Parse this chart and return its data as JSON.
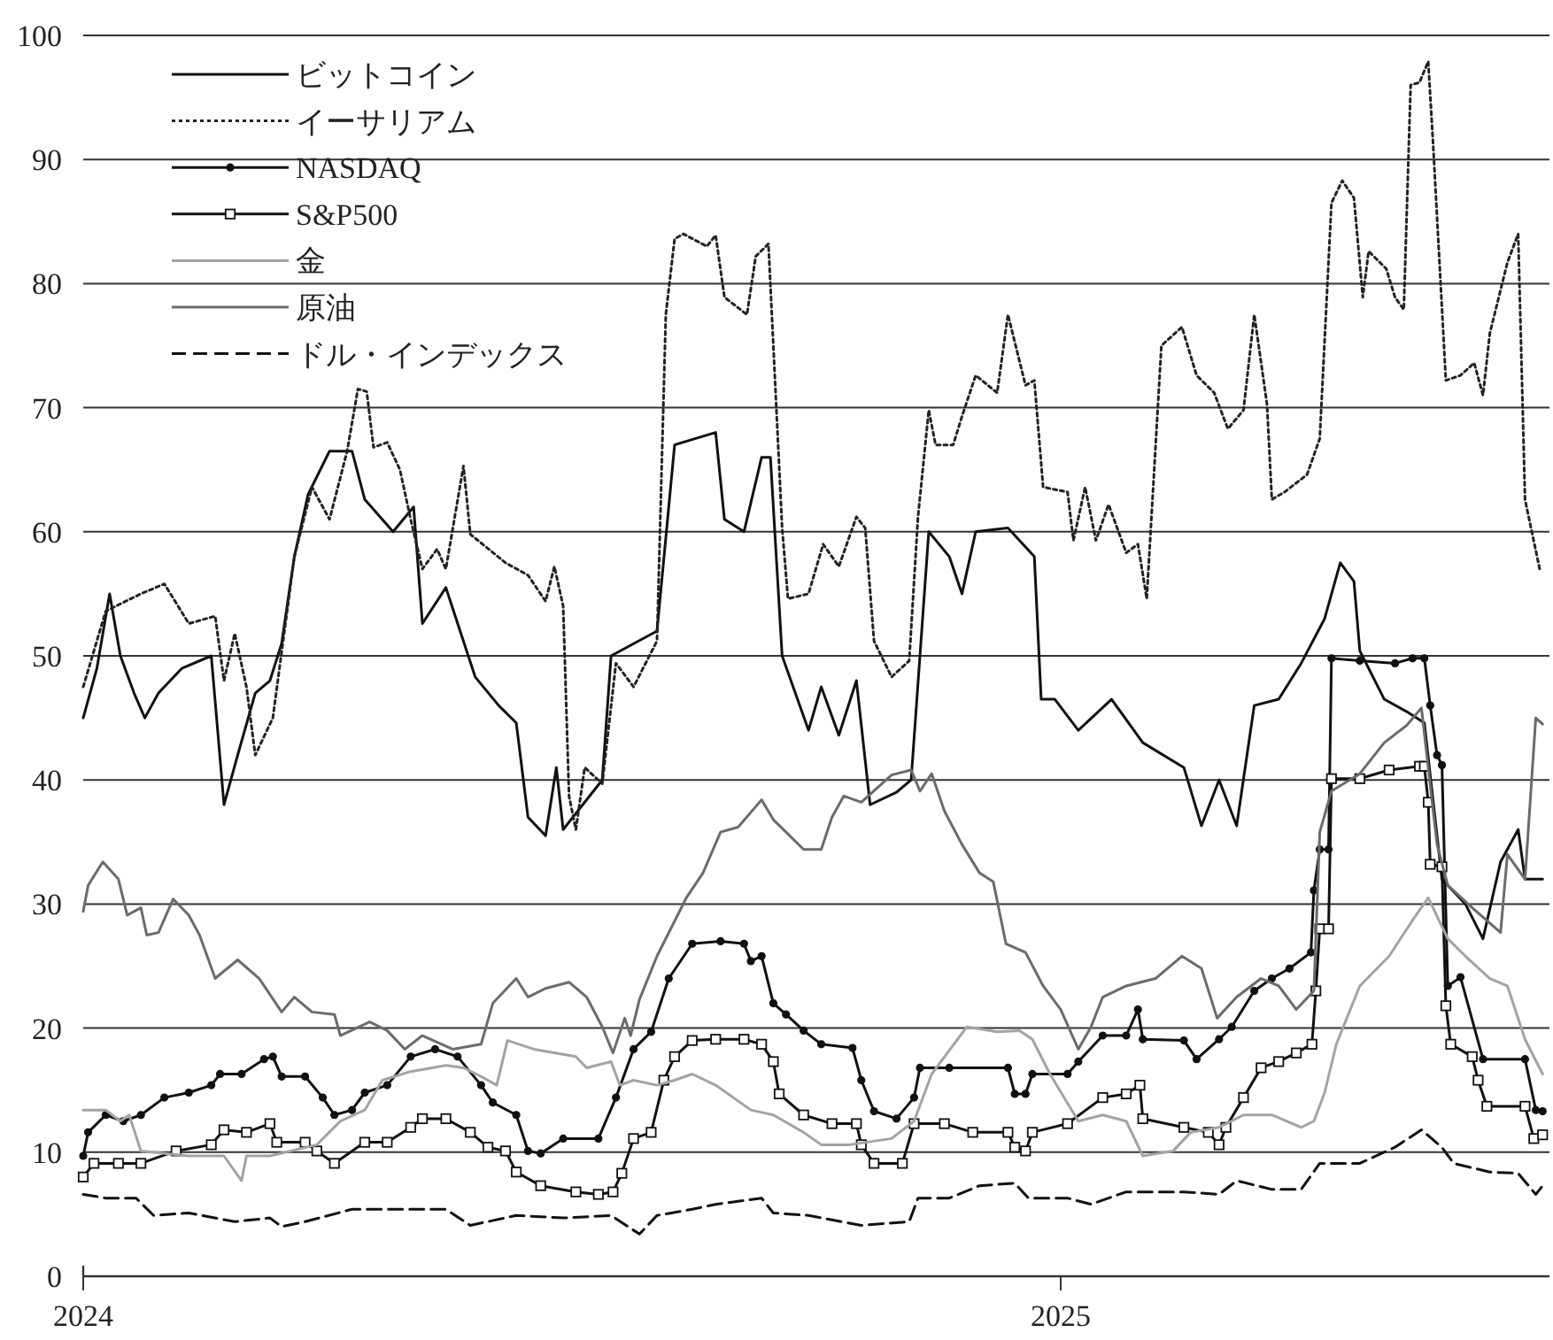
{
  "chart_data": {
    "type": "line",
    "xlim": [
      2024,
      2025.5
    ],
    "xticks": [
      2024,
      2025
    ],
    "ylim": [
      0,
      100
    ],
    "yticks": [
      0,
      10,
      20,
      30,
      40,
      50,
      60,
      70,
      80,
      90,
      100
    ],
    "grid": "y",
    "legend": "top left",
    "series": [
      {
        "name": "ビットコイン",
        "color": "#111111",
        "line_style": "solid",
        "x": [
          2024.0,
          2024.014,
          2024.027,
          2024.038,
          2024.052,
          2024.063,
          2024.077,
          2024.101,
          2024.131,
          2024.144,
          2024.158,
          2024.176,
          2024.191,
          2024.203,
          2024.216,
          2024.23,
          2024.252,
          2024.275,
          2024.288,
          2024.317,
          2024.338,
          2024.347,
          2024.371,
          2024.401,
          2024.425,
          2024.443,
          2024.455,
          2024.473,
          2024.484,
          2024.491,
          2024.531,
          2024.54,
          2024.587,
          2024.599,
          2024.605,
          2024.647,
          2024.656,
          2024.676,
          2024.694,
          2024.703,
          2024.715,
          2024.742,
          2024.755,
          2024.773,
          2024.791,
          2024.805,
          2024.832,
          2024.847,
          2024.865,
          2024.886,
          2024.899,
          2024.913,
          2024.946,
          2024.973,
          2024.98,
          2024.994,
          2025.018,
          2025.052,
          2025.084,
          2025.126,
          2025.144,
          2025.162,
          2025.18,
          2025.198,
          2025.223,
          2025.246,
          2025.27,
          2025.286,
          2025.3,
          2025.306,
          2025.331,
          2025.354,
          2025.372,
          2025.39,
          2025.414,
          2025.432,
          2025.45,
          2025.468,
          2025.475,
          2025.493
        ],
        "values": [
          45,
          49,
          55,
          50,
          47,
          45,
          47,
          49,
          50,
          38,
          42,
          47,
          48,
          51,
          58,
          63,
          66.5,
          66.5,
          62.6,
          60,
          62,
          52.6,
          55.5,
          48.3,
          46,
          44.6,
          37,
          35.5,
          41,
          36,
          40,
          50,
          52,
          62,
          67,
          68,
          61,
          60,
          66,
          66,
          50,
          44,
          47.5,
          43.6,
          48,
          38,
          39,
          40,
          60,
          58,
          55,
          60,
          60.3,
          58,
          46.5,
          46.5,
          44,
          46.5,
          43,
          41,
          36.3,
          40,
          36.3,
          46,
          46.5,
          49.4,
          53,
          57.5,
          56,
          50.4,
          46.5,
          45.5,
          44.6,
          32,
          30,
          27.2,
          33.4,
          36,
          32,
          32
        ]
      },
      {
        "name": "イーサリアム",
        "color": "#222222",
        "line_style": "dotted",
        "x": [
          2024.0,
          2024.023,
          2024.059,
          2024.083,
          2024.108,
          2024.135,
          2024.144,
          2024.155,
          2024.167,
          2024.176,
          2024.194,
          2024.216,
          2024.234,
          2024.252,
          2024.27,
          2024.281,
          2024.29,
          2024.297,
          2024.311,
          2024.324,
          2024.335,
          2024.347,
          2024.362,
          2024.371,
          2024.389,
          2024.396,
          2024.432,
          2024.455,
          2024.473,
          2024.482,
          2024.491,
          2024.497,
          2024.504,
          2024.513,
          2024.531,
          2024.545,
          2024.563,
          2024.587,
          2024.596,
          2024.605,
          2024.614,
          2024.638,
          2024.647,
          2024.656,
          2024.679,
          2024.688,
          2024.701,
          2024.715,
          2024.721,
          2024.742,
          2024.757,
          2024.773,
          2024.791,
          2024.8,
          2024.809,
          2024.827,
          2024.845,
          2024.854,
          2024.865,
          2024.872,
          2024.89,
          2024.899,
          2024.913,
          2024.935,
          2024.946,
          2024.964,
          2024.973,
          2024.982,
          2025.007,
          2025.013,
          2025.025,
          2025.036,
          2025.049,
          2025.067,
          2025.079,
          2025.088,
          2025.103,
          2025.124,
          2025.139,
          2025.157,
          2025.171,
          2025.187,
          2025.198,
          2025.211,
          2025.216,
          2025.229,
          2025.252,
          2025.265,
          2025.277,
          2025.288,
          2025.3,
          2025.309,
          2025.315,
          2025.333,
          2025.342,
          2025.351,
          2025.358,
          2025.367,
          2025.376,
          2025.381,
          2025.394,
          2025.409,
          2025.423,
          2025.432,
          2025.439,
          2025.457,
          2025.468,
          2025.475,
          2025.49
        ],
        "values": [
          47.5,
          53.6,
          55,
          55.8,
          52.6,
          53.2,
          48,
          51.8,
          47.5,
          42,
          45,
          58,
          63.6,
          61,
          66.5,
          71.5,
          71.3,
          66.8,
          67.2,
          65,
          61,
          57,
          58.6,
          57,
          65.3,
          59.8,
          57.5,
          56.5,
          54.4,
          57.2,
          54,
          38.7,
          36,
          41,
          39.7,
          49.4,
          47.5,
          51.2,
          77.5,
          83.6,
          84,
          83,
          83.9,
          78.9,
          77.5,
          82.2,
          83.2,
          60.3,
          54.6,
          55,
          59,
          57.2,
          61.2,
          60.3,
          51.2,
          48.3,
          49.6,
          61.2,
          69.8,
          67,
          67,
          69.3,
          72.6,
          71.2,
          77.5,
          71.8,
          72.2,
          63.6,
          63.2,
          59.3,
          63.6,
          59.3,
          62.2,
          58.3,
          59,
          54.6,
          75,
          76.5,
          72.6,
          71.2,
          68.3,
          69.8,
          77.5,
          70.3,
          62.6,
          63.2,
          64.6,
          67.5,
          86.5,
          88.3,
          86.9,
          78.9,
          82.6,
          81.2,
          78.9,
          77.9,
          96,
          96.2,
          97.9,
          91.2,
          72.2,
          72.6,
          73.6,
          71,
          76,
          81.7,
          84,
          62.6,
          57
        ]
      },
      {
        "name": "NASDAQ",
        "color": "#111111",
        "line_style": "solid",
        "marker": "circle",
        "x": [
          2024.0,
          2024.005,
          2024.023,
          2024.041,
          2024.059,
          2024.083,
          2024.108,
          2024.131,
          2024.14,
          2024.162,
          2024.185,
          2024.194,
          2024.203,
          2024.227,
          2024.245,
          2024.257,
          2024.275,
          2024.288,
          2024.311,
          2024.335,
          2024.36,
          2024.383,
          2024.407,
          2024.419,
          2024.443,
          2024.455,
          2024.468,
          2024.491,
          2024.527,
          2024.545,
          2024.563,
          2024.581,
          2024.599,
          2024.623,
          2024.652,
          2024.676,
          2024.683,
          2024.694,
          2024.706,
          2024.719,
          2024.737,
          2024.755,
          2024.787,
          2024.796,
          2024.809,
          2024.832,
          2024.85,
          2024.856,
          2024.886,
          2024.946,
          2024.953,
          2024.964,
          2024.971,
          2025.007,
          2025.018,
          2025.043,
          2025.067,
          2025.079,
          2025.084,
          2025.126,
          2025.139,
          2025.162,
          2025.175,
          2025.198,
          2025.216,
          2025.234,
          2025.256,
          2025.259,
          2025.265,
          2025.274,
          2025.277,
          2025.306,
          2025.342,
          2025.36,
          2025.372,
          2025.378,
          2025.385,
          2025.39,
          2025.396,
          2025.409,
          2025.432,
          2025.475,
          2025.486,
          2025.493
        ],
        "values": [
          9.7,
          11.6,
          13,
          12.5,
          13,
          14.4,
          14.8,
          15.4,
          16.3,
          16.3,
          17.5,
          17.7,
          16.1,
          16.1,
          14.4,
          13,
          13.4,
          14.8,
          15.4,
          17.7,
          18.3,
          17.7,
          15.4,
          14,
          13,
          10.1,
          9.9,
          11.1,
          11.1,
          14.4,
          18.3,
          19.7,
          24,
          26.8,
          27,
          26.8,
          25.4,
          25.8,
          22,
          21.1,
          19.8,
          18.7,
          18.4,
          15.8,
          13.3,
          12.7,
          14.4,
          16.8,
          16.8,
          16.8,
          14.7,
          14.7,
          16.3,
          16.3,
          17.3,
          19.4,
          19.4,
          21.5,
          19.1,
          19,
          17.5,
          19.1,
          20.1,
          23,
          24,
          24.8,
          26.1,
          31.1,
          34.4,
          34.4,
          49.8,
          49.6,
          49.4,
          49.8,
          49.8,
          46,
          42,
          41.2,
          23.4,
          24.1,
          17.5,
          17.5,
          13.4,
          13.3
        ]
      },
      {
        "name": "S&P500",
        "color": "#111111",
        "line_style": "solid",
        "marker": "square",
        "x": [
          2024.0,
          2024.011,
          2024.036,
          2024.059,
          2024.095,
          2024.131,
          2024.144,
          2024.167,
          2024.191,
          2024.198,
          2024.227,
          2024.239,
          2024.257,
          2024.288,
          2024.311,
          2024.335,
          2024.347,
          2024.371,
          2024.396,
          2024.414,
          2024.432,
          2024.443,
          2024.468,
          2024.504,
          2024.527,
          2024.542,
          2024.551,
          2024.563,
          2024.581,
          2024.594,
          2024.605,
          2024.623,
          2024.647,
          2024.676,
          2024.694,
          2024.706,
          2024.712,
          2024.737,
          2024.766,
          2024.791,
          2024.796,
          2024.809,
          2024.838,
          2024.85,
          2024.881,
          2024.91,
          2024.946,
          2024.953,
          2024.964,
          2024.971,
          2025.007,
          2025.043,
          2025.067,
          2025.081,
          2025.084,
          2025.126,
          2025.151,
          2025.162,
          2025.169,
          2025.187,
          2025.205,
          2025.223,
          2025.241,
          2025.257,
          2025.261,
          2025.265,
          2025.274,
          2025.277,
          2025.306,
          2025.336,
          2025.367,
          2025.372,
          2025.376,
          2025.378,
          2025.39,
          2025.394,
          2025.399,
          2025.421,
          2025.427,
          2025.436,
          2025.475,
          2025.484,
          2025.493
        ],
        "values": [
          8,
          9.1,
          9.1,
          9.1,
          10.1,
          10.6,
          11.8,
          11.6,
          12.3,
          10.8,
          10.8,
          10.1,
          9.1,
          10.8,
          10.8,
          12,
          12.7,
          12.7,
          11.6,
          10.4,
          10.1,
          8.4,
          7.3,
          6.8,
          6.6,
          6.8,
          8.3,
          11.1,
          11.6,
          15.8,
          17.7,
          19,
          19.1,
          19.1,
          18.7,
          17.3,
          14.7,
          13,
          12.3,
          12.3,
          10.6,
          9.1,
          9.1,
          12.3,
          12.3,
          11.6,
          11.6,
          10.4,
          10.1,
          11.6,
          12.3,
          14.4,
          14.7,
          15.4,
          12.7,
          12,
          11.6,
          10.6,
          12,
          14.4,
          16.8,
          17.3,
          18,
          18.7,
          23,
          28,
          28,
          40.1,
          40.1,
          40.8,
          41.1,
          41.1,
          38.2,
          33.2,
          33,
          21.8,
          18.7,
          17.7,
          15.8,
          13.7,
          13.7,
          11.1,
          11.4
        ]
      },
      {
        "name": "金",
        "color": "#a3a3a3",
        "line_style": "solid",
        "x": [
          2024.0,
          2024.023,
          2024.038,
          2024.047,
          2024.059,
          2024.108,
          2024.144,
          2024.162,
          2024.167,
          2024.191,
          2024.239,
          2024.263,
          2024.288,
          2024.306,
          2024.335,
          2024.371,
          2024.389,
          2024.407,
          2024.423,
          2024.434,
          2024.461,
          2024.504,
          2024.515,
          2024.54,
          2024.549,
          2024.563,
          2024.587,
          2024.605,
          2024.623,
          2024.647,
          2024.683,
          2024.706,
          2024.737,
          2024.755,
          2024.784,
          2024.827,
          2024.85,
          2024.868,
          2024.904,
          2024.935,
          2024.958,
          2024.971,
          2024.989,
          2025.018,
          2025.043,
          2025.067,
          2025.084,
          2025.115,
          2025.133,
          2025.162,
          2025.187,
          2025.216,
          2025.246,
          2025.259,
          2025.27,
          2025.282,
          2025.306,
          2025.336,
          2025.36,
          2025.376,
          2025.396,
          2025.414,
          2025.439,
          2025.457,
          2025.475,
          2025.493
        ],
        "values": [
          13.4,
          13.4,
          12.5,
          13,
          10.1,
          9.7,
          9.7,
          7.7,
          9.7,
          9.7,
          10.6,
          12.5,
          13.4,
          15.8,
          16.5,
          17,
          16.8,
          16.1,
          15.4,
          19,
          18.3,
          17.7,
          16.8,
          17.3,
          15.4,
          15.8,
          15.4,
          15.8,
          16.3,
          15.4,
          13.4,
          13,
          11.6,
          10.6,
          10.6,
          11.1,
          12.5,
          16.3,
          20.1,
          19.7,
          19.8,
          19.1,
          16.3,
          12.5,
          13,
          12.5,
          9.7,
          10.1,
          11.6,
          12,
          13,
          13,
          12,
          12.5,
          14.8,
          18.7,
          23.4,
          25.8,
          28.7,
          30.5,
          27.2,
          25.8,
          24,
          23.4,
          19.1,
          16.3
        ]
      },
      {
        "name": "原油",
        "color": "#6b6b6b",
        "line_style": "solid",
        "x": [
          2024.0,
          2024.005,
          2024.02,
          2024.036,
          2024.045,
          2024.059,
          2024.065,
          2024.077,
          2024.092,
          2024.108,
          2024.119,
          2024.135,
          2024.158,
          2024.18,
          2024.203,
          2024.216,
          2024.234,
          2024.257,
          2024.263,
          2024.293,
          2024.311,
          2024.329,
          2024.347,
          2024.378,
          2024.407,
          2024.419,
          2024.443,
          2024.455,
          2024.473,
          2024.497,
          2024.515,
          2024.531,
          2024.542,
          2024.554,
          2024.56,
          2024.569,
          2024.587,
          2024.617,
          2024.634,
          2024.652,
          2024.67,
          2024.694,
          2024.706,
          2024.719,
          2024.737,
          2024.755,
          2024.766,
          2024.778,
          2024.796,
          2024.827,
          2024.847,
          2024.856,
          2024.868,
          2024.881,
          2024.899,
          2024.917,
          2024.931,
          2024.944,
          2024.964,
          2024.982,
          2025.0,
          2025.018,
          2025.031,
          2025.043,
          2025.067,
          2025.097,
          2025.124,
          2025.144,
          2025.16,
          2025.18,
          2025.205,
          2025.223,
          2025.241,
          2025.259,
          2025.265,
          2025.277,
          2025.306,
          2025.331,
          2025.354,
          2025.369,
          2025.385,
          2025.396,
          2025.421,
          2025.45,
          2025.457,
          2025.475,
          2025.486,
          2025.493
        ],
        "values": [
          29.4,
          31.5,
          33.4,
          32,
          29.1,
          29.7,
          27.5,
          27.7,
          30.4,
          29.1,
          27.5,
          24,
          25.5,
          24,
          21.3,
          22.5,
          21.3,
          21.1,
          19.4,
          20.5,
          19.8,
          18.3,
          19.4,
          18.3,
          18.7,
          22,
          24,
          22.5,
          23.2,
          23.7,
          22.5,
          20.1,
          18,
          20.8,
          19.4,
          22.3,
          25.8,
          30.5,
          32.5,
          35.8,
          36.2,
          38.4,
          36.8,
          35.8,
          34.4,
          34.4,
          37,
          38.7,
          38.2,
          40.4,
          40.8,
          39.1,
          40.5,
          37.5,
          34.8,
          32.5,
          31.8,
          26.8,
          26.1,
          23.4,
          21.5,
          18.3,
          20.1,
          22.5,
          23.4,
          24,
          25.8,
          24.8,
          20.8,
          22.5,
          24,
          23.4,
          21.5,
          23,
          35.8,
          39.1,
          40.5,
          43,
          44.4,
          45.8,
          34.8,
          31.5,
          29.7,
          27.7,
          34,
          32,
          45,
          44.5
        ]
      },
      {
        "name": "ドル・インデックス",
        "color": "#111111",
        "line_style": "dashed",
        "x": [
          2024.0,
          2024.023,
          2024.054,
          2024.072,
          2024.108,
          2024.155,
          2024.191,
          2024.203,
          2024.227,
          2024.275,
          2024.324,
          2024.371,
          2024.396,
          2024.443,
          2024.491,
          2024.54,
          2024.569,
          2024.587,
          2024.623,
          2024.647,
          2024.694,
          2024.706,
          2024.742,
          2024.796,
          2024.845,
          2024.854,
          2024.886,
          2024.917,
          2024.953,
          2024.967,
          2025.007,
          2025.031,
          2025.067,
          2025.126,
          2025.162,
          2025.18,
          2025.216,
          2025.246,
          2025.265,
          2025.306,
          2025.342,
          2025.369,
          2025.39,
          2025.402,
          2025.439,
          2025.468,
          2025.486,
          2025.493
        ],
        "values": [
          6.6,
          6.3,
          6.3,
          4.9,
          5.1,
          4.4,
          4.7,
          4,
          4.4,
          5.4,
          5.4,
          5.4,
          4.1,
          4.9,
          4.7,
          4.9,
          3.4,
          4.9,
          5.4,
          5.8,
          6.3,
          5.1,
          4.9,
          4.1,
          4.4,
          6.3,
          6.3,
          7.3,
          7.5,
          6.3,
          6.3,
          5.8,
          6.8,
          6.8,
          6.6,
          7.7,
          7,
          7,
          9.1,
          9.1,
          10.4,
          11.8,
          10.4,
          9.1,
          8.4,
          8.3,
          6.6,
          7.3
        ]
      }
    ]
  }
}
